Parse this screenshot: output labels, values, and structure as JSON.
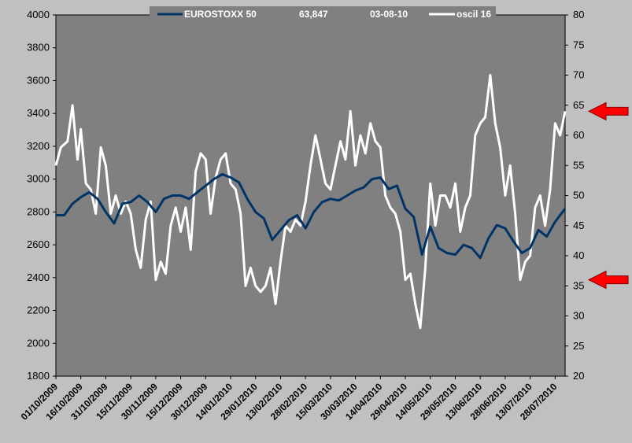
{
  "legend": {
    "items": [
      {
        "label": "EUROSTOXX 50",
        "color": "#003366"
      },
      {
        "label": "oscil 16",
        "color": "#ffffff"
      }
    ],
    "value": "63,847",
    "date": "03-08-10"
  },
  "colors": {
    "background": "#c0c0c0",
    "plot_area": "#808080",
    "index_line": "#003366",
    "oscillator_line": "#ffffff",
    "arrows": "#ff0000"
  },
  "chart_data": {
    "type": "line",
    "legend_placement": "top",
    "grid": false,
    "x_tick_labels": [
      "01/10/2009",
      "16/10/2009",
      "31/10/2009",
      "15/11/2009",
      "30/11/2009",
      "15/12/2009",
      "30/12/2009",
      "14/01/2010",
      "29/01/2010",
      "13/02/2010",
      "28/02/2010",
      "15/03/2010",
      "30/03/2010",
      "14/04/2010",
      "29/04/2010",
      "14/05/2010",
      "29/05/2010",
      "13/06/2010",
      "28/06/2010",
      "13/07/2010",
      "28/07/2010"
    ],
    "x_range": [
      "01/10/2009",
      "03/08/2010"
    ],
    "y_left": {
      "min": 1800,
      "max": 4000,
      "ticks": [
        1800,
        2000,
        2200,
        2400,
        2600,
        2800,
        3000,
        3200,
        3400,
        3600,
        3800,
        4000
      ]
    },
    "y_right": {
      "min": 20,
      "max": 80,
      "ticks": [
        20,
        25,
        30,
        35,
        40,
        45,
        50,
        55,
        60,
        65,
        70,
        75,
        80
      ]
    },
    "arrow_levels_right": [
      64,
      36
    ],
    "series": [
      {
        "name": "EUROSTOXX 50",
        "axis": "left",
        "points": [
          [
            "01/10/2009",
            2780
          ],
          [
            "06/10/2009",
            2780
          ],
          [
            "11/10/2009",
            2850
          ],
          [
            "16/10/2009",
            2890
          ],
          [
            "21/10/2009",
            2920
          ],
          [
            "26/10/2009",
            2880
          ],
          [
            "31/10/2009",
            2800
          ],
          [
            "05/11/2009",
            2730
          ],
          [
            "10/11/2009",
            2850
          ],
          [
            "15/11/2009",
            2860
          ],
          [
            "20/11/2009",
            2900
          ],
          [
            "25/11/2009",
            2860
          ],
          [
            "30/11/2009",
            2800
          ],
          [
            "05/12/2009",
            2880
          ],
          [
            "10/12/2009",
            2900
          ],
          [
            "15/12/2009",
            2900
          ],
          [
            "20/12/2009",
            2880
          ],
          [
            "25/12/2009",
            2920
          ],
          [
            "30/12/2009",
            2960
          ],
          [
            "04/01/2010",
            3000
          ],
          [
            "09/01/2010",
            3030
          ],
          [
            "14/01/2010",
            3010
          ],
          [
            "19/01/2010",
            2980
          ],
          [
            "24/01/2010",
            2880
          ],
          [
            "29/01/2010",
            2800
          ],
          [
            "03/02/2010",
            2760
          ],
          [
            "08/02/2010",
            2630
          ],
          [
            "13/02/2010",
            2690
          ],
          [
            "18/02/2010",
            2750
          ],
          [
            "23/02/2010",
            2780
          ],
          [
            "28/02/2010",
            2700
          ],
          [
            "05/03/2010",
            2800
          ],
          [
            "10/03/2010",
            2860
          ],
          [
            "15/03/2010",
            2880
          ],
          [
            "20/03/2010",
            2870
          ],
          [
            "25/03/2010",
            2900
          ],
          [
            "30/03/2010",
            2930
          ],
          [
            "04/04/2010",
            2950
          ],
          [
            "09/04/2010",
            3000
          ],
          [
            "14/04/2010",
            3010
          ],
          [
            "19/04/2010",
            2940
          ],
          [
            "24/04/2010",
            2960
          ],
          [
            "29/04/2010",
            2820
          ],
          [
            "04/05/2010",
            2770
          ],
          [
            "09/05/2010",
            2540
          ],
          [
            "14/05/2010",
            2710
          ],
          [
            "19/05/2010",
            2580
          ],
          [
            "24/05/2010",
            2550
          ],
          [
            "29/05/2010",
            2540
          ],
          [
            "03/06/2010",
            2600
          ],
          [
            "08/06/2010",
            2580
          ],
          [
            "13/06/2010",
            2520
          ],
          [
            "18/06/2010",
            2640
          ],
          [
            "23/06/2010",
            2720
          ],
          [
            "28/06/2010",
            2700
          ],
          [
            "03/07/2010",
            2620
          ],
          [
            "08/07/2010",
            2550
          ],
          [
            "13/07/2010",
            2580
          ],
          [
            "18/07/2010",
            2690
          ],
          [
            "23/07/2010",
            2650
          ],
          [
            "28/07/2010",
            2740
          ],
          [
            "03/08/2010",
            2820
          ]
        ]
      },
      {
        "name": "oscil 16",
        "axis": "right",
        "points": [
          [
            "01/10/2009",
            55
          ],
          [
            "04/10/2009",
            58
          ],
          [
            "08/10/2009",
            59
          ],
          [
            "11/10/2009",
            65
          ],
          [
            "14/10/2009",
            56
          ],
          [
            "16/10/2009",
            61
          ],
          [
            "19/10/2009",
            52
          ],
          [
            "22/10/2009",
            51
          ],
          [
            "25/10/2009",
            47
          ],
          [
            "28/10/2009",
            58
          ],
          [
            "31/10/2009",
            55
          ],
          [
            "03/11/2009",
            47
          ],
          [
            "06/11/2009",
            50
          ],
          [
            "09/11/2009",
            47
          ],
          [
            "12/11/2009",
            49
          ],
          [
            "15/11/2009",
            47
          ],
          [
            "18/11/2009",
            41
          ],
          [
            "21/11/2009",
            38
          ],
          [
            "24/11/2009",
            46
          ],
          [
            "27/11/2009",
            49
          ],
          [
            "30/11/2009",
            36
          ],
          [
            "03/12/2009",
            39
          ],
          [
            "06/12/2009",
            37
          ],
          [
            "09/12/2009",
            45
          ],
          [
            "12/12/2009",
            48
          ],
          [
            "15/12/2009",
            44
          ],
          [
            "18/12/2009",
            48
          ],
          [
            "21/12/2009",
            41
          ],
          [
            "24/12/2009",
            54
          ],
          [
            "27/12/2009",
            57
          ],
          [
            "30/12/2009",
            56
          ],
          [
            "02/01/2010",
            47
          ],
          [
            "05/01/2010",
            53
          ],
          [
            "08/01/2010",
            56
          ],
          [
            "11/01/2010",
            57
          ],
          [
            "14/01/2010",
            52
          ],
          [
            "17/01/2010",
            51
          ],
          [
            "20/01/2010",
            47
          ],
          [
            "23/01/2010",
            35
          ],
          [
            "26/01/2010",
            38
          ],
          [
            "29/01/2010",
            35
          ],
          [
            "01/02/2010",
            34
          ],
          [
            "04/02/2010",
            35
          ],
          [
            "07/02/2010",
            38
          ],
          [
            "10/02/2010",
            32
          ],
          [
            "13/02/2010",
            39
          ],
          [
            "16/02/2010",
            45
          ],
          [
            "19/02/2010",
            44
          ],
          [
            "22/02/2010",
            46
          ],
          [
            "25/02/2010",
            45
          ],
          [
            "28/02/2010",
            49
          ],
          [
            "03/03/2010",
            55
          ],
          [
            "06/03/2010",
            60
          ],
          [
            "09/03/2010",
            56
          ],
          [
            "12/03/2010",
            52
          ],
          [
            "15/03/2010",
            51
          ],
          [
            "18/03/2010",
            55
          ],
          [
            "21/03/2010",
            59
          ],
          [
            "24/03/2010",
            56
          ],
          [
            "27/03/2010",
            64
          ],
          [
            "30/03/2010",
            55
          ],
          [
            "02/04/2010",
            60
          ],
          [
            "05/04/2010",
            57
          ],
          [
            "08/04/2010",
            62
          ],
          [
            "11/04/2010",
            59
          ],
          [
            "14/04/2010",
            58
          ],
          [
            "17/04/2010",
            50
          ],
          [
            "20/04/2010",
            48
          ],
          [
            "23/04/2010",
            47
          ],
          [
            "26/04/2010",
            44
          ],
          [
            "29/04/2010",
            36
          ],
          [
            "02/05/2010",
            37
          ],
          [
            "05/05/2010",
            32
          ],
          [
            "08/05/2010",
            28
          ],
          [
            "11/05/2010",
            38
          ],
          [
            "14/05/2010",
            52
          ],
          [
            "17/05/2010",
            45
          ],
          [
            "20/05/2010",
            50
          ],
          [
            "23/05/2010",
            50
          ],
          [
            "26/05/2010",
            48
          ],
          [
            "29/05/2010",
            52
          ],
          [
            "01/06/2010",
            44
          ],
          [
            "04/06/2010",
            48
          ],
          [
            "07/06/2010",
            50
          ],
          [
            "10/06/2010",
            60
          ],
          [
            "13/06/2010",
            62
          ],
          [
            "16/06/2010",
            63
          ],
          [
            "19/06/2010",
            70
          ],
          [
            "22/06/2010",
            62
          ],
          [
            "25/06/2010",
            58
          ],
          [
            "28/06/2010",
            50
          ],
          [
            "01/07/2010",
            55
          ],
          [
            "04/07/2010",
            47
          ],
          [
            "07/07/2010",
            36
          ],
          [
            "10/07/2010",
            39
          ],
          [
            "13/07/2010",
            40
          ],
          [
            "16/07/2010",
            48
          ],
          [
            "19/07/2010",
            50
          ],
          [
            "22/07/2010",
            45
          ],
          [
            "25/07/2010",
            51
          ],
          [
            "28/07/2010",
            62
          ],
          [
            "31/07/2010",
            60
          ],
          [
            "03/08/2010",
            64
          ]
        ]
      }
    ]
  }
}
